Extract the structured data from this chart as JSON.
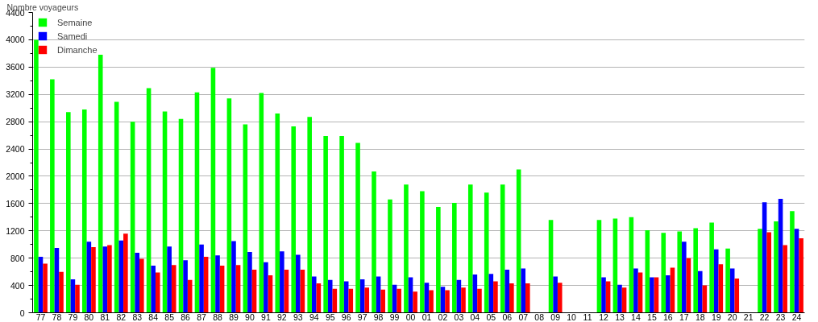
{
  "chart_data": {
    "type": "bar",
    "ylabel": "Nombre voyageurs",
    "categories": [
      "77",
      "78",
      "79",
      "80",
      "81",
      "82",
      "83",
      "84",
      "85",
      "86",
      "87",
      "88",
      "89",
      "90",
      "91",
      "92",
      "93",
      "94",
      "95",
      "96",
      "97",
      "98",
      "99",
      "00",
      "01",
      "02",
      "03",
      "04",
      "05",
      "06",
      "07",
      "08",
      "09",
      "10",
      "11",
      "12",
      "13",
      "14",
      "15",
      "16",
      "17",
      "18",
      "19",
      "20",
      "21",
      "22",
      "23",
      "24"
    ],
    "series": [
      {
        "name": "Semaine",
        "color": "#00ff00",
        "values": [
          4000,
          3420,
          2940,
          2980,
          3780,
          3090,
          2800,
          3290,
          2950,
          2840,
          3230,
          3590,
          3140,
          2760,
          3220,
          2920,
          2730,
          2870,
          2590,
          2590,
          2490,
          2070,
          1660,
          1880,
          1780,
          1550,
          1610,
          1880,
          1760,
          1880,
          2100,
          null,
          1360,
          null,
          null,
          1360,
          1380,
          1400,
          1210,
          1170,
          1190,
          1240,
          1320,
          940,
          null,
          1230,
          1340,
          1490
        ]
      },
      {
        "name": "Samedi",
        "color": "#0000ff",
        "values": [
          820,
          950,
          490,
          1040,
          970,
          1060,
          880,
          690,
          970,
          770,
          1000,
          840,
          1050,
          890,
          740,
          900,
          850,
          530,
          480,
          460,
          490,
          530,
          410,
          520,
          440,
          380,
          480,
          560,
          570,
          630,
          650,
          null,
          530,
          null,
          null,
          520,
          410,
          650,
          520,
          550,
          1040,
          610,
          930,
          650,
          null,
          1620,
          1670,
          1230
        ]
      },
      {
        "name": "Dimanche",
        "color": "#ff0000",
        "values": [
          720,
          600,
          410,
          960,
          990,
          1160,
          790,
          590,
          700,
          480,
          820,
          690,
          700,
          630,
          550,
          630,
          630,
          430,
          350,
          350,
          370,
          340,
          350,
          310,
          330,
          330,
          370,
          350,
          460,
          430,
          430,
          null,
          440,
          null,
          null,
          460,
          370,
          590,
          520,
          660,
          800,
          400,
          710,
          500,
          null,
          1180,
          990,
          1090
        ]
      }
    ],
    "ylim": [
      0,
      4400
    ],
    "yticks": [
      0,
      {
        "value": 200,
        "label": null
      },
      400,
      {
        "value": 600,
        "label": null
      },
      800,
      {
        "value": 1000,
        "label": null
      },
      1200,
      {
        "value": 1400,
        "label": null
      },
      1600,
      {
        "value": 1800,
        "label": null
      },
      2000,
      {
        "value": 2200,
        "label": null
      },
      2400,
      {
        "value": 2600,
        "label": null
      },
      2800,
      {
        "value": 3000,
        "label": null
      },
      3200,
      {
        "value": 3400,
        "label": null
      },
      3600,
      {
        "value": 3800,
        "label": null
      },
      4000,
      {
        "value": 4200,
        "label": null
      },
      4400
    ],
    "grid": "y",
    "legend": "top left"
  }
}
